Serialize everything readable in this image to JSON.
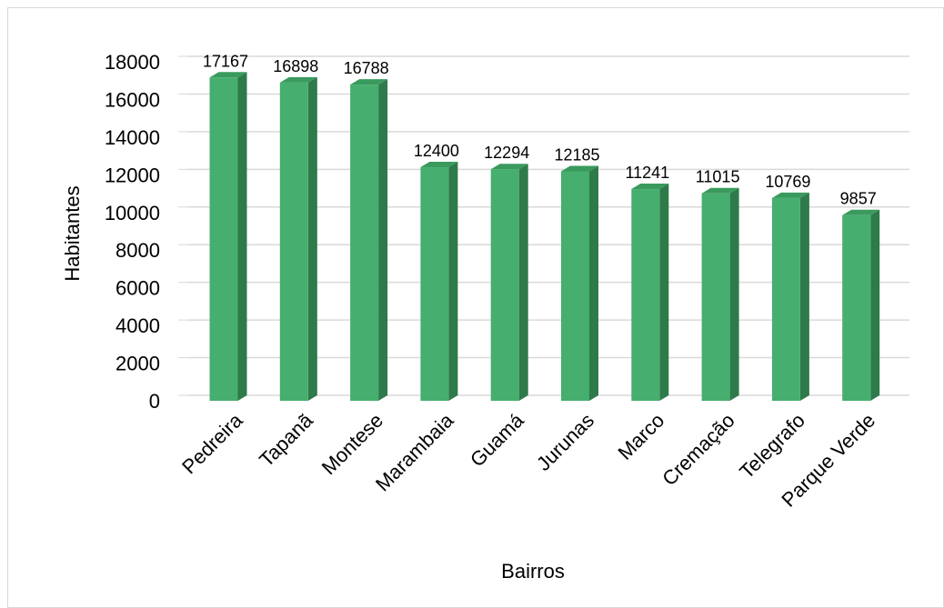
{
  "chart_data": {
    "type": "bar",
    "style": "3d-column",
    "title": "",
    "xlabel": "Bairros",
    "ylabel": "Habitantes",
    "categories": [
      "Pedreira",
      "Tapanã",
      "Montese",
      "Marambaia",
      "Guamá",
      "Jurunas",
      "Marco",
      "Cremação",
      "Telegrafo",
      "Parque Verde"
    ],
    "values": [
      17167,
      16898,
      16788,
      12400,
      12294,
      12185,
      11241,
      11015,
      10769,
      9857
    ],
    "data_labels": [
      "17167",
      "16898",
      "16788",
      "12400",
      "12294",
      "12185",
      "11241",
      "11015",
      "10769",
      "9857"
    ],
    "ylim": [
      0,
      18000
    ],
    "yticks": [
      "0",
      "2000",
      "4000",
      "6000",
      "8000",
      "10000",
      "12000",
      "14000",
      "16000",
      "18000"
    ],
    "grid": true,
    "legend": "none",
    "colors": {
      "bar_front": "#46ae6e",
      "bar_side": "#2e7a4a",
      "bar_top": "#3a9a5e",
      "grid": "#d9d9d9"
    }
  }
}
